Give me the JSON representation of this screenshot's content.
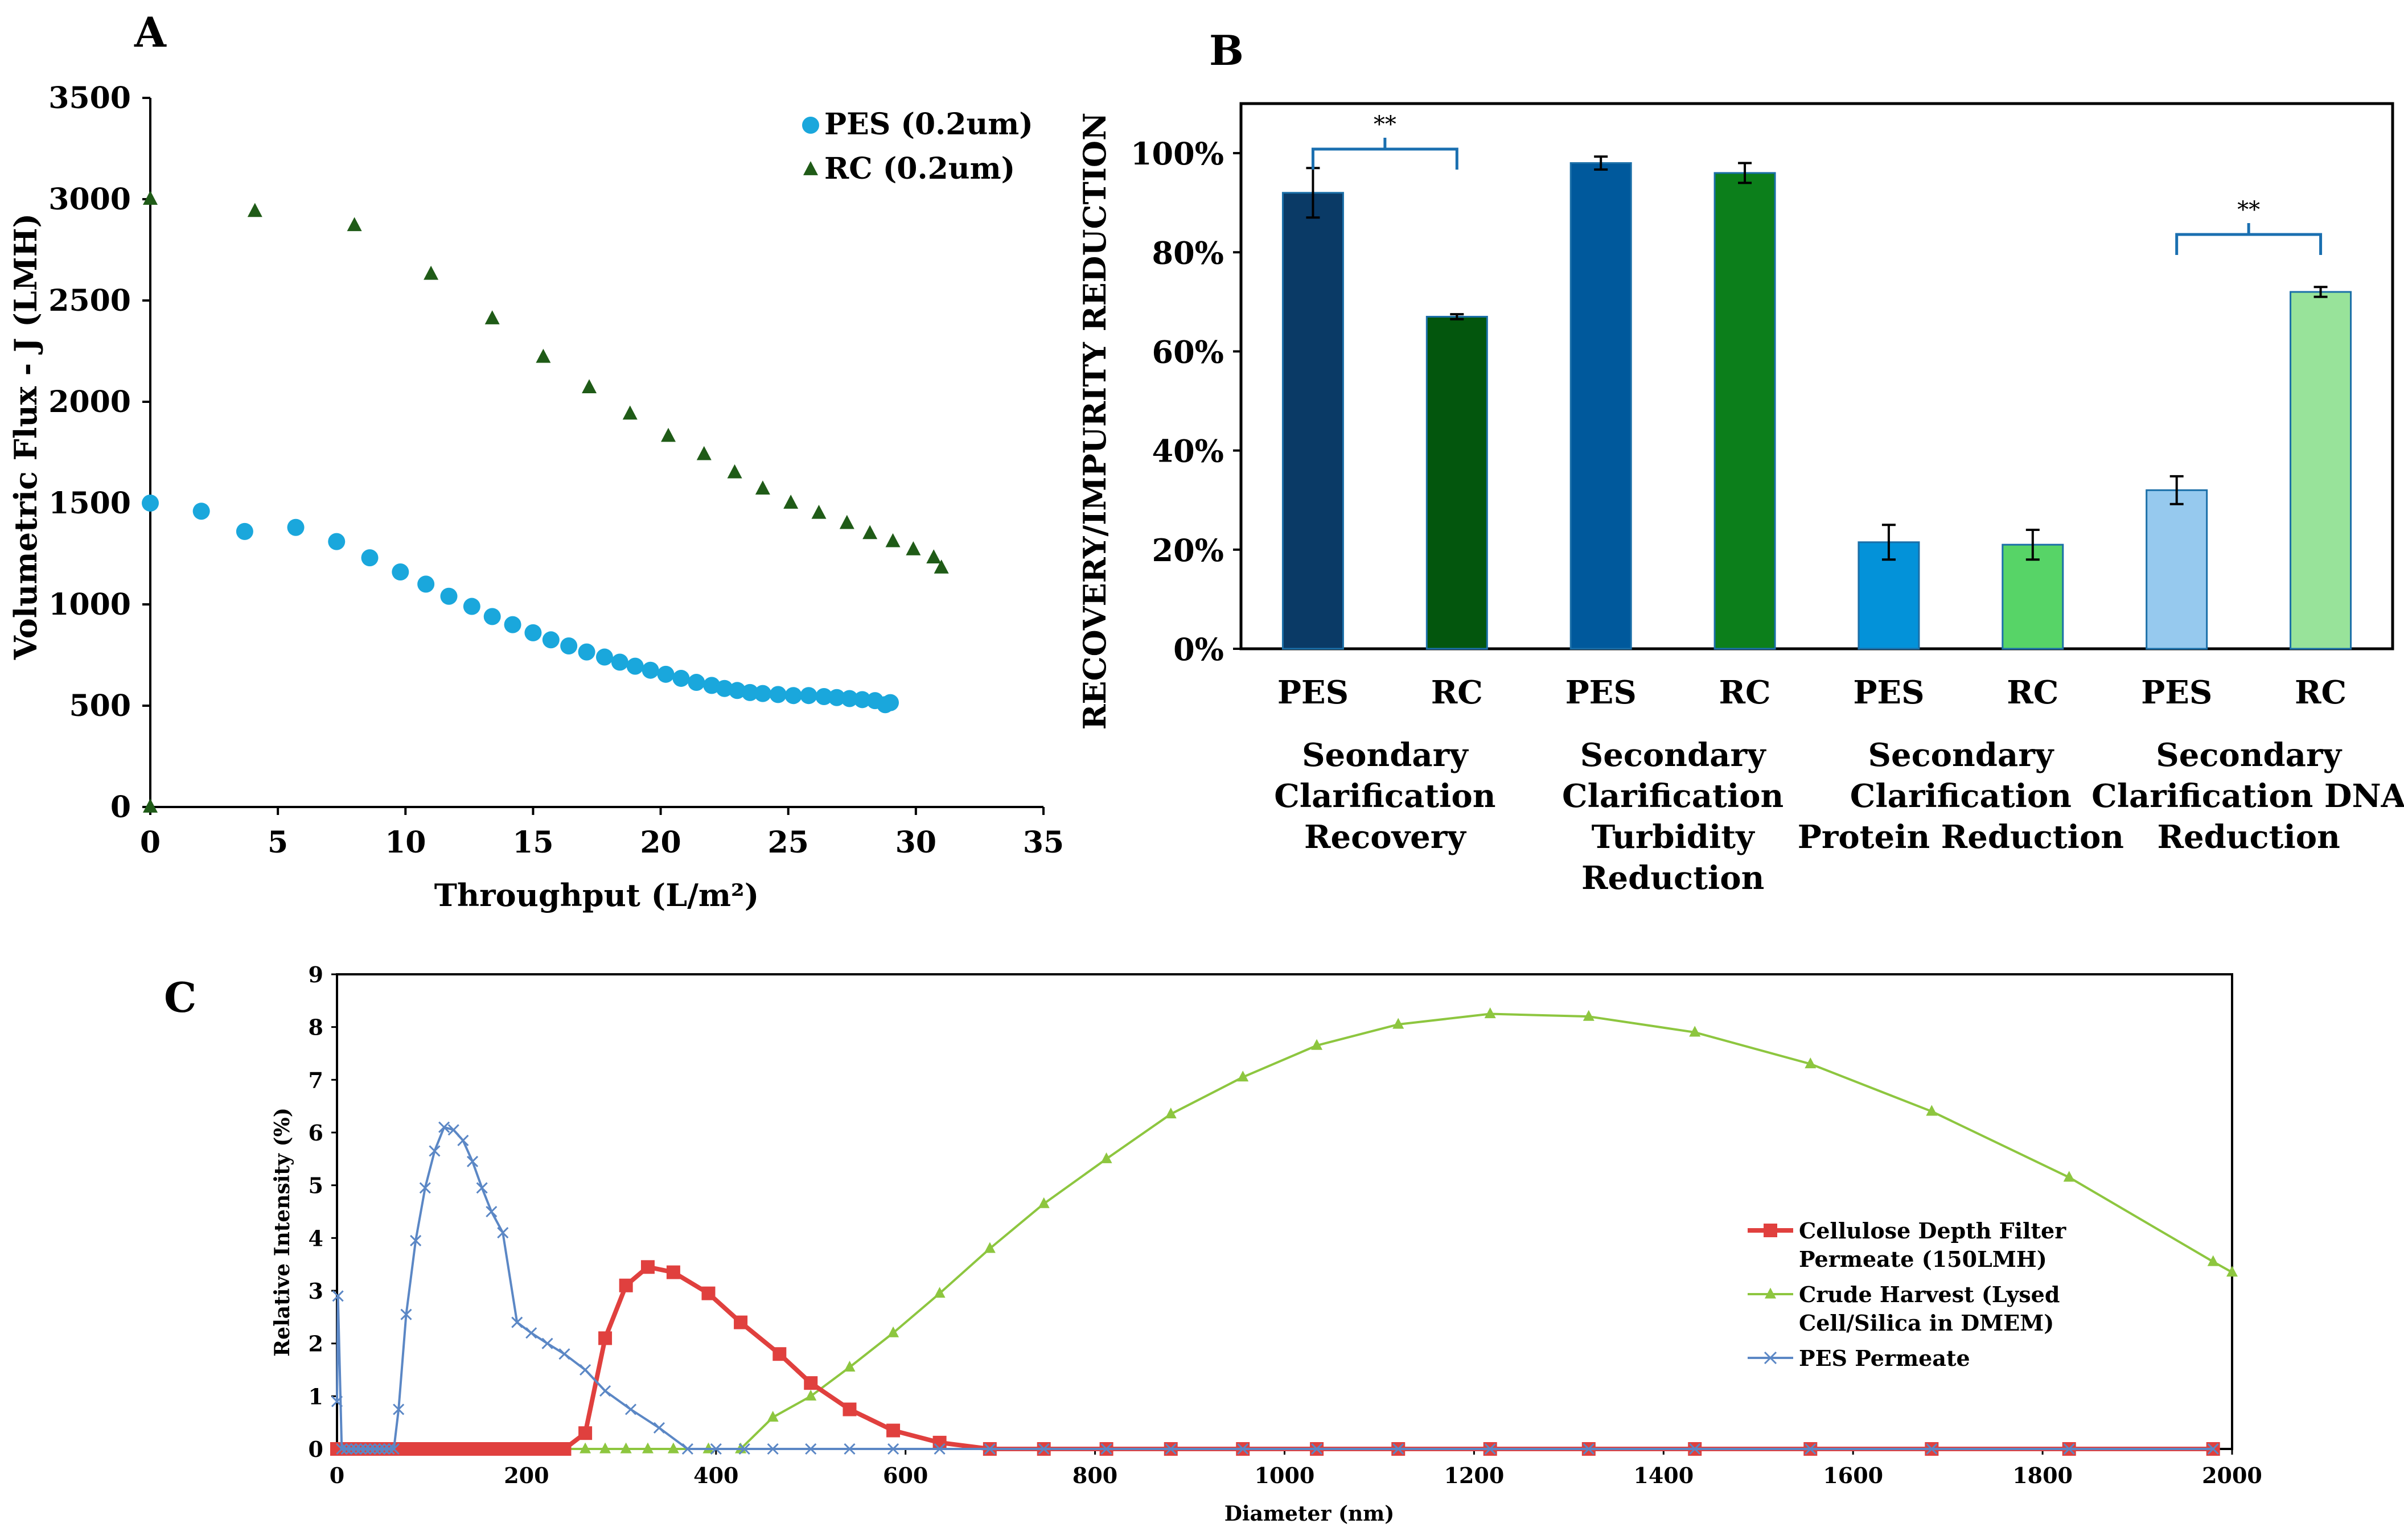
{
  "panels": {
    "a": {
      "letter": "A"
    },
    "b": {
      "letter": "B"
    },
    "c": {
      "letter": "C"
    }
  },
  "chart_data": [
    {
      "id": "panel-a",
      "type": "scatter",
      "title": "",
      "xlabel": "Throughput  (L/m²)",
      "ylabel": "Volumetric  Flux - J (LMH)",
      "xlim": [
        0,
        35
      ],
      "ylim": [
        0,
        3500
      ],
      "xticks": [
        0,
        5,
        10,
        15,
        20,
        25,
        30,
        35
      ],
      "yticks": [
        0,
        500,
        1000,
        1500,
        2000,
        2500,
        3000,
        3500
      ],
      "legend_position": "top-right",
      "colors": {
        "pes": "#1aa7dc",
        "rc": "#1f5b17"
      },
      "series": [
        {
          "name": "PES (0.2um)",
          "marker": "circle",
          "x": [
            0,
            2.0,
            3.7,
            5.7,
            7.3,
            8.6,
            9.8,
            10.8,
            11.7,
            12.6,
            13.4,
            14.2,
            15.0,
            15.7,
            16.4,
            17.1,
            17.8,
            18.4,
            19.0,
            19.6,
            20.2,
            20.8,
            21.4,
            22.0,
            22.5,
            23.0,
            23.5,
            24.0,
            24.6,
            25.2,
            25.8,
            26.4,
            26.9,
            27.4,
            27.9,
            28.4,
            28.8,
            29.0
          ],
          "y": [
            1500,
            1460,
            1360,
            1380,
            1310,
            1230,
            1160,
            1100,
            1040,
            990,
            940,
            900,
            860,
            825,
            795,
            765,
            740,
            715,
            695,
            675,
            655,
            635,
            615,
            600,
            585,
            575,
            565,
            560,
            555,
            550,
            550,
            545,
            540,
            535,
            530,
            525,
            505,
            515
          ]
        },
        {
          "name": "RC (0.2um)",
          "marker": "triangle",
          "x": [
            0,
            0,
            4.1,
            8.0,
            11.0,
            13.4,
            15.4,
            17.2,
            18.8,
            20.3,
            21.7,
            22.9,
            24.0,
            25.1,
            26.2,
            27.3,
            28.2,
            29.1,
            29.9,
            30.7,
            31.0
          ],
          "y": [
            0,
            3000,
            2940,
            2870,
            2630,
            2410,
            2220,
            2070,
            1940,
            1830,
            1740,
            1650,
            1570,
            1500,
            1450,
            1400,
            1350,
            1310,
            1270,
            1230,
            1180
          ]
        }
      ]
    },
    {
      "id": "panel-b",
      "type": "bar",
      "title": "",
      "ylabel": "RECOVERY/IMPURITY  REDUCTION",
      "ylim": [
        0,
        1.1
      ],
      "yticks": [
        0,
        0.2,
        0.4,
        0.6,
        0.8,
        1.0
      ],
      "ytick_labels": [
        "0%",
        "20%",
        "40%",
        "60%",
        "80%",
        "100%"
      ],
      "bars": [
        {
          "label": "PES",
          "value": 0.92,
          "error": 0.05,
          "color": "#0a3a66"
        },
        {
          "label": "RC",
          "value": 0.67,
          "error": 0.005,
          "color": "#03560d"
        },
        {
          "label": "PES",
          "value": 0.98,
          "error": 0.013,
          "color": "#00599c"
        },
        {
          "label": "RC",
          "value": 0.96,
          "error": 0.02,
          "color": "#0c7f1b"
        },
        {
          "label": "PES",
          "value": 0.215,
          "error": 0.035,
          "color": "#0392d9"
        },
        {
          "label": "RC",
          "value": 0.21,
          "error": 0.03,
          "color": "#57d467"
        },
        {
          "label": "PES",
          "value": 0.32,
          "error": 0.028,
          "color": "#96c9ee"
        },
        {
          "label": "RC",
          "value": 0.72,
          "error": 0.01,
          "color": "#98e39a"
        }
      ],
      "groups": [
        {
          "lines": [
            "Seondary",
            "Clarification",
            "Recovery"
          ]
        },
        {
          "lines": [
            "Secondary",
            "Clarification",
            "Turbidity",
            "Reduction"
          ]
        },
        {
          "lines": [
            "Secondary",
            "Clarification",
            "Protein Reduction"
          ]
        },
        {
          "lines": [
            "Secondary",
            "Clarification DNA",
            "Reduction"
          ]
        }
      ],
      "significance": [
        {
          "label": "**",
          "bars": [
            0,
            1
          ]
        },
        {
          "label": "**",
          "bars": [
            6,
            7
          ]
        }
      ]
    },
    {
      "id": "panel-c",
      "type": "line",
      "title": "",
      "xlabel": "Diameter (nm)",
      "ylabel": "Relative Intensity (%)",
      "xlim": [
        0,
        2000
      ],
      "ylim": [
        0,
        9
      ],
      "xticks": [
        0,
        200,
        400,
        600,
        800,
        1000,
        1200,
        1400,
        1600,
        1800,
        2000
      ],
      "yticks": [
        0,
        1,
        2,
        3,
        4,
        5,
        6,
        7,
        8,
        9
      ],
      "legend_position": "right",
      "series": [
        {
          "name": "Cellulose Depth Filter Permeate (150LMH)",
          "legend_lines": [
            "Cellulose Depth Filter",
            "Permeate (150LMH)"
          ],
          "color": "#e0403e",
          "marker": "square",
          "x": [
            0,
            10,
            20,
            30,
            40,
            50,
            60,
            70,
            80,
            90,
            100,
            110,
            120,
            130,
            140,
            150,
            160,
            170,
            180,
            190,
            200,
            210,
            220,
            230,
            240,
            262,
            283,
            305,
            328,
            355,
            392,
            426,
            467,
            500,
            541,
            587,
            636,
            689,
            746,
            812,
            880,
            956,
            1034,
            1120,
            1217,
            1321,
            1433,
            1555,
            1683,
            1828,
            1980
          ],
          "y": [
            0,
            0,
            0,
            0,
            0,
            0,
            0,
            0,
            0,
            0,
            0,
            0,
            0,
            0,
            0,
            0,
            0,
            0,
            0,
            0,
            0,
            0,
            0,
            0,
            0,
            0.3,
            2.1,
            3.1,
            3.45,
            3.35,
            2.95,
            2.4,
            1.8,
            1.25,
            0.75,
            0.35,
            0.12,
            0,
            0,
            0,
            0,
            0,
            0,
            0,
            0,
            0,
            0,
            0,
            0,
            0,
            0
          ]
        },
        {
          "name": "Crude Harvest (Lysed Cell/Silica in DMEM)",
          "legend_lines": [
            "Crude Harvest (Lysed",
            "Cell/Silica in DMEM)"
          ],
          "color": "#8dc63f",
          "marker": "triangle",
          "x": [
            0,
            30,
            60,
            90,
            120,
            150,
            180,
            210,
            240,
            262,
            283,
            305,
            328,
            355,
            392,
            426,
            460,
            500,
            541,
            587,
            636,
            689,
            746,
            812,
            880,
            956,
            1034,
            1120,
            1217,
            1321,
            1433,
            1555,
            1683,
            1828,
            1980,
            2000
          ],
          "y": [
            0,
            0,
            0,
            0,
            0,
            0,
            0,
            0,
            0,
            0,
            0,
            0,
            0,
            0,
            0,
            0,
            0.6,
            1.0,
            1.55,
            2.2,
            2.95,
            3.8,
            4.65,
            5.5,
            6.35,
            7.05,
            7.65,
            8.05,
            8.25,
            8.2,
            7.9,
            7.3,
            6.4,
            5.15,
            3.55,
            3.35
          ]
        },
        {
          "name": "PES Permeate",
          "legend_lines": [
            "PES Permeate"
          ],
          "color": "#5b87c5",
          "marker": "x",
          "x": [
            0,
            1,
            5,
            10,
            15,
            20,
            25,
            30,
            35,
            40,
            45,
            50,
            55,
            60,
            65,
            73,
            83,
            93,
            103,
            113,
            123,
            133,
            143,
            153,
            163,
            175,
            190,
            205,
            222,
            240,
            262,
            283,
            310,
            340,
            370,
            400,
            430,
            460,
            500,
            541,
            587,
            636,
            689,
            746,
            812,
            880,
            956,
            1034,
            1120,
            1217,
            1321,
            1433,
            1555,
            1683,
            1828,
            1980
          ],
          "y": [
            0.9,
            2.9,
            0,
            0,
            0,
            0,
            0,
            0,
            0,
            0,
            0,
            0,
            0,
            0,
            0.75,
            2.55,
            3.95,
            4.95,
            5.65,
            6.1,
            6.05,
            5.85,
            5.45,
            4.95,
            4.5,
            4.1,
            2.4,
            2.2,
            2.0,
            1.8,
            1.5,
            1.1,
            0.75,
            0.4,
            0,
            0,
            0,
            0,
            0,
            0,
            0,
            0,
            0,
            0,
            0,
            0,
            0,
            0,
            0,
            0,
            0,
            0,
            0,
            0,
            0,
            0
          ]
        }
      ]
    }
  ]
}
